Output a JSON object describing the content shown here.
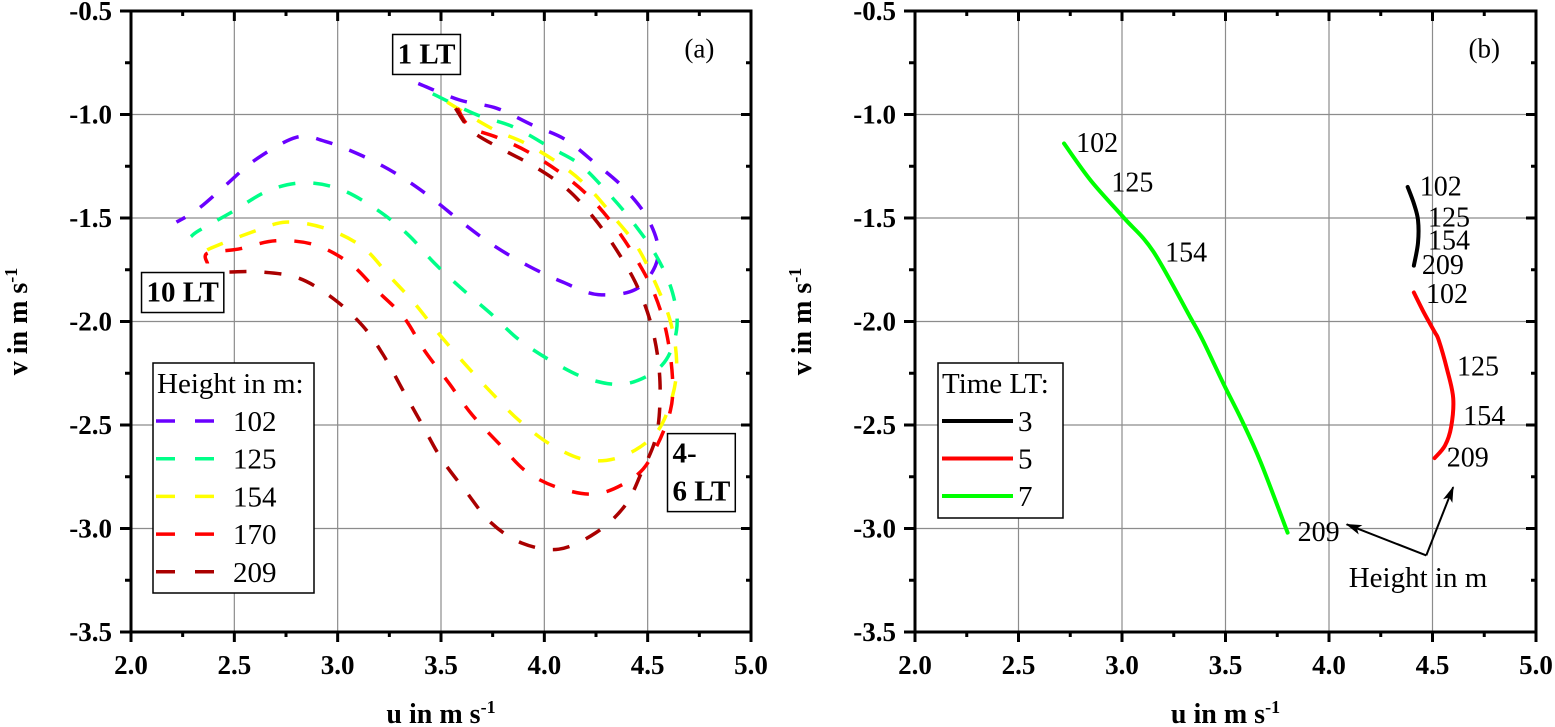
{
  "chart_data": [
    {
      "panel_id": "a",
      "panel_label": "(a)",
      "panel_label_at": [
        4.75,
        -0.68
      ],
      "type": "line",
      "title": "",
      "xlabel": "u in m s",
      "xlabel_superscript": "-1",
      "ylabel": "v in m s",
      "ylabel_superscript": "-1",
      "xlim": [
        2.0,
        5.0
      ],
      "ylim": [
        -3.5,
        -0.5
      ],
      "xticks": [
        2.0,
        2.5,
        3.0,
        3.5,
        4.0,
        4.5,
        5.0
      ],
      "xtick_labels": [
        "2.0",
        "2.5",
        "3.0",
        "3.5",
        "4.0",
        "4.5",
        "5.0"
      ],
      "yticks": [
        -0.5,
        -1.0,
        -1.5,
        -2.0,
        -2.5,
        -3.0,
        -3.5
      ],
      "ytick_labels": [
        "-0.5",
        "-1.0",
        "-1.5",
        "-2.0",
        "-2.5",
        "-3.0",
        "-3.5"
      ],
      "grid": true,
      "legend": {
        "title": "Height in m:",
        "placement": "lower-left",
        "line_style": "dashed"
      },
      "series": [
        {
          "name": "102",
          "color": "#6a00ff",
          "line_style": "dashed",
          "points": [
            [
              3.39,
              -0.85
            ],
            [
              3.59,
              -0.93
            ],
            [
              3.77,
              -0.97
            ],
            [
              3.94,
              -1.05
            ],
            [
              4.1,
              -1.12
            ],
            [
              4.24,
              -1.23
            ],
            [
              4.39,
              -1.36
            ],
            [
              4.51,
              -1.52
            ],
            [
              4.55,
              -1.69
            ],
            [
              4.45,
              -1.84
            ],
            [
              4.26,
              -1.87
            ],
            [
              4.09,
              -1.81
            ],
            [
              3.92,
              -1.73
            ],
            [
              3.75,
              -1.63
            ],
            [
              3.6,
              -1.52
            ],
            [
              3.45,
              -1.4
            ],
            [
              3.29,
              -1.29
            ],
            [
              3.12,
              -1.2
            ],
            [
              2.94,
              -1.13
            ],
            [
              2.8,
              -1.11
            ],
            [
              2.6,
              -1.22
            ],
            [
              2.46,
              -1.34
            ],
            [
              2.32,
              -1.46
            ],
            [
              2.22,
              -1.52
            ]
          ]
        },
        {
          "name": "125",
          "color": "#00ff88",
          "line_style": "dashed",
          "points": [
            [
              3.46,
              -0.9
            ],
            [
              3.67,
              -1.0
            ],
            [
              3.85,
              -1.06
            ],
            [
              4.03,
              -1.16
            ],
            [
              4.17,
              -1.24
            ],
            [
              4.3,
              -1.37
            ],
            [
              4.42,
              -1.51
            ],
            [
              4.54,
              -1.68
            ],
            [
              4.62,
              -1.86
            ],
            [
              4.64,
              -2.04
            ],
            [
              4.57,
              -2.21
            ],
            [
              4.4,
              -2.3
            ],
            [
              4.22,
              -2.28
            ],
            [
              4.05,
              -2.2
            ],
            [
              3.88,
              -2.09
            ],
            [
              3.75,
              -1.97
            ],
            [
              3.61,
              -1.85
            ],
            [
              3.47,
              -1.72
            ],
            [
              3.34,
              -1.58
            ],
            [
              3.19,
              -1.46
            ],
            [
              3.01,
              -1.36
            ],
            [
              2.83,
              -1.33
            ],
            [
              2.66,
              -1.37
            ],
            [
              2.49,
              -1.47
            ],
            [
              2.33,
              -1.56
            ],
            [
              2.29,
              -1.59
            ]
          ]
        },
        {
          "name": "154",
          "color": "#ffff00",
          "line_style": "dashed",
          "points": [
            [
              3.53,
              -0.94
            ],
            [
              3.75,
              -1.07
            ],
            [
              3.91,
              -1.14
            ],
            [
              4.09,
              -1.25
            ],
            [
              4.22,
              -1.36
            ],
            [
              4.34,
              -1.5
            ],
            [
              4.45,
              -1.64
            ],
            [
              4.54,
              -1.82
            ],
            [
              4.61,
              -2.0
            ],
            [
              4.64,
              -2.19
            ],
            [
              4.62,
              -2.36
            ],
            [
              4.54,
              -2.54
            ],
            [
              4.38,
              -2.65
            ],
            [
              4.21,
              -2.67
            ],
            [
              4.04,
              -2.6
            ],
            [
              3.88,
              -2.48
            ],
            [
              3.75,
              -2.35
            ],
            [
              3.62,
              -2.21
            ],
            [
              3.49,
              -2.06
            ],
            [
              3.37,
              -1.91
            ],
            [
              3.25,
              -1.78
            ],
            [
              3.12,
              -1.64
            ],
            [
              2.94,
              -1.55
            ],
            [
              2.75,
              -1.52
            ],
            [
              2.58,
              -1.57
            ],
            [
              2.4,
              -1.64
            ],
            [
              2.36,
              -1.66
            ]
          ]
        },
        {
          "name": "170",
          "color": "#ff0000",
          "line_style": "dashed",
          "points": [
            [
              3.58,
              -0.97
            ],
            [
              3.64,
              -1.06
            ],
            [
              3.77,
              -1.11
            ],
            [
              3.92,
              -1.18
            ],
            [
              4.09,
              -1.29
            ],
            [
              4.22,
              -1.4
            ],
            [
              4.34,
              -1.54
            ],
            [
              4.44,
              -1.69
            ],
            [
              4.53,
              -1.86
            ],
            [
              4.59,
              -2.05
            ],
            [
              4.62,
              -2.27
            ],
            [
              4.61,
              -2.43
            ],
            [
              4.54,
              -2.61
            ],
            [
              4.45,
              -2.74
            ],
            [
              4.27,
              -2.83
            ],
            [
              4.09,
              -2.81
            ],
            [
              3.92,
              -2.73
            ],
            [
              3.79,
              -2.6
            ],
            [
              3.65,
              -2.45
            ],
            [
              3.54,
              -2.3
            ],
            [
              3.42,
              -2.14
            ],
            [
              3.32,
              -1.98
            ],
            [
              3.19,
              -1.85
            ],
            [
              3.06,
              -1.72
            ],
            [
              2.89,
              -1.63
            ],
            [
              2.7,
              -1.61
            ],
            [
              2.52,
              -1.65
            ],
            [
              2.37,
              -1.67
            ],
            [
              2.37,
              -1.72
            ]
          ]
        },
        {
          "name": "209",
          "color": "#aa0000",
          "line_style": "dashed",
          "points": [
            [
              3.57,
              -0.97
            ],
            [
              3.65,
              -1.08
            ],
            [
              3.8,
              -1.17
            ],
            [
              3.95,
              -1.25
            ],
            [
              4.11,
              -1.36
            ],
            [
              4.24,
              -1.5
            ],
            [
              4.34,
              -1.64
            ],
            [
              4.44,
              -1.81
            ],
            [
              4.51,
              -1.99
            ],
            [
              4.55,
              -2.18
            ],
            [
              4.56,
              -2.37
            ],
            [
              4.54,
              -2.56
            ],
            [
              4.47,
              -2.73
            ],
            [
              4.39,
              -2.89
            ],
            [
              4.25,
              -3.02
            ],
            [
              4.07,
              -3.1
            ],
            [
              3.89,
              -3.07
            ],
            [
              3.74,
              -2.97
            ],
            [
              3.62,
              -2.82
            ],
            [
              3.5,
              -2.66
            ],
            [
              3.41,
              -2.5
            ],
            [
              3.32,
              -2.34
            ],
            [
              3.22,
              -2.16
            ],
            [
              3.12,
              -2.02
            ],
            [
              2.98,
              -1.89
            ],
            [
              2.81,
              -1.79
            ],
            [
              2.62,
              -1.76
            ],
            [
              2.45,
              -1.76
            ],
            [
              2.42,
              -1.74
            ]
          ]
        }
      ],
      "annotations": [
        {
          "lines": [
            "1 LT"
          ],
          "at": [
            3.43,
            -0.71
          ],
          "boxed": true
        },
        {
          "lines": [
            "10 LT"
          ],
          "at": [
            2.25,
            -1.86
          ],
          "boxed": true
        },
        {
          "lines": [
            "4-",
            "6 LT"
          ],
          "at": [
            4.76,
            -2.73
          ],
          "boxed": true
        }
      ]
    },
    {
      "panel_id": "b",
      "panel_label": "(b)",
      "panel_label_at": [
        4.75,
        -0.68
      ],
      "type": "line",
      "title": "",
      "xlabel": "u in m s",
      "xlabel_superscript": "-1",
      "ylabel": "v in m s",
      "ylabel_superscript": "-1",
      "xlim": [
        2.0,
        5.0
      ],
      "ylim": [
        -3.5,
        -0.5
      ],
      "xticks": [
        2.0,
        2.5,
        3.0,
        3.5,
        4.0,
        4.5,
        5.0
      ],
      "xtick_labels": [
        "2.0",
        "2.5",
        "3.0",
        "3.5",
        "4.0",
        "4.5",
        "5.0"
      ],
      "yticks": [
        -0.5,
        -1.0,
        -1.5,
        -2.0,
        -2.5,
        -3.0,
        -3.5
      ],
      "ytick_labels": [
        "-0.5",
        "-1.0",
        "-1.5",
        "-2.0",
        "-2.5",
        "-3.0",
        "-3.5"
      ],
      "grid": true,
      "legend": {
        "title": "Time LT:",
        "placement": "lower-left",
        "line_style": "solid"
      },
      "series": [
        {
          "name": "3",
          "color": "#000000",
          "line_style": "solid",
          "points": [
            [
              4.38,
              -1.35
            ],
            [
              4.41,
              -1.43
            ],
            [
              4.43,
              -1.51
            ],
            [
              4.43,
              -1.62
            ],
            [
              4.41,
              -1.73
            ]
          ],
          "height_labels": [
            {
              "text": "102",
              "at": [
                4.54,
                -1.35
              ]
            },
            {
              "text": "125",
              "at": [
                4.58,
                -1.5
              ]
            },
            {
              "text": "154",
              "at": [
                4.58,
                -1.61
              ]
            },
            {
              "text": "209",
              "at": [
                4.55,
                -1.73
              ]
            }
          ]
        },
        {
          "name": "5",
          "color": "#ff0000",
          "line_style": "solid",
          "points": [
            [
              4.41,
              -1.86
            ],
            [
              4.46,
              -1.96
            ],
            [
              4.51,
              -2.05
            ],
            [
              4.53,
              -2.09
            ],
            [
              4.57,
              -2.23
            ],
            [
              4.6,
              -2.37
            ],
            [
              4.59,
              -2.51
            ],
            [
              4.56,
              -2.6
            ],
            [
              4.51,
              -2.66
            ]
          ],
          "height_labels": [
            {
              "text": "102",
              "at": [
                4.57,
                -1.87
              ]
            },
            {
              "text": "125",
              "at": [
                4.72,
                -2.22
              ]
            },
            {
              "text": "154",
              "at": [
                4.75,
                -2.46
              ]
            },
            {
              "text": "209",
              "at": [
                4.67,
                -2.66
              ]
            }
          ]
        },
        {
          "name": "7",
          "color": "#00ff00",
          "line_style": "solid",
          "points": [
            [
              2.72,
              -1.14
            ],
            [
              2.85,
              -1.32
            ],
            [
              3.01,
              -1.5
            ],
            [
              3.15,
              -1.66
            ],
            [
              3.33,
              -1.98
            ],
            [
              3.39,
              -2.09
            ],
            [
              3.49,
              -2.3
            ],
            [
              3.58,
              -2.48
            ],
            [
              3.67,
              -2.68
            ],
            [
              3.8,
              -3.02
            ]
          ],
          "height_labels": [
            {
              "text": "102",
              "at": [
                2.88,
                -1.14
              ]
            },
            {
              "text": "125",
              "at": [
                3.05,
                -1.33
              ]
            },
            {
              "text": "154",
              "at": [
                3.31,
                -1.67
              ]
            },
            {
              "text": "209",
              "at": [
                3.95,
                -3.02
              ]
            }
          ]
        }
      ],
      "annotations": [
        {
          "lines": [
            "Height in m"
          ],
          "at": [
            4.43,
            -3.24
          ],
          "boxed": false,
          "arrows": [
            {
              "from": [
                4.47,
                -3.13
              ],
              "to": [
                4.085,
                -2.98
              ]
            },
            {
              "from": [
                4.47,
                -3.13
              ],
              "to": [
                4.6,
                -2.8
              ]
            }
          ]
        }
      ]
    }
  ]
}
